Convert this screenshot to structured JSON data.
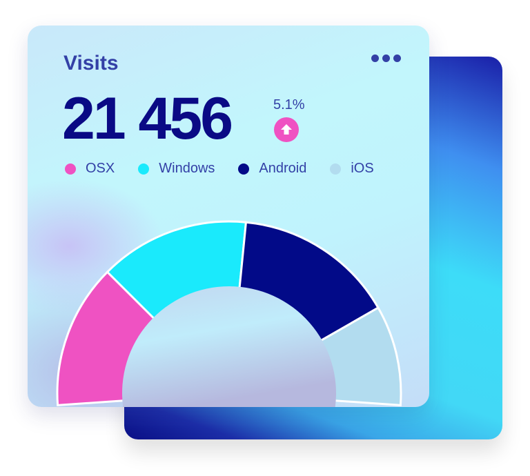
{
  "widget": {
    "title": "Visits",
    "menu_icon": "more-horizontal-icon",
    "total": "21 456",
    "change": "5.1%",
    "trend_icon": "arrow-up-icon",
    "trend_color": "#ef52c2"
  },
  "legend": [
    {
      "label": "OSX",
      "color": "#ef52c2"
    },
    {
      "label": "Windows",
      "color": "#1aeafc"
    },
    {
      "label": "Android",
      "color": "#020a88"
    },
    {
      "label": "iOS",
      "color": "#b2dcef"
    }
  ],
  "chart_data": {
    "type": "pie",
    "style": "semi-donut",
    "categories": [
      "OSX",
      "Windows",
      "Android",
      "iOS"
    ],
    "values": [
      26,
      27,
      29,
      18
    ],
    "colors": [
      "#ef52c2",
      "#1aeafc",
      "#020a88",
      "#b2dcef"
    ]
  }
}
